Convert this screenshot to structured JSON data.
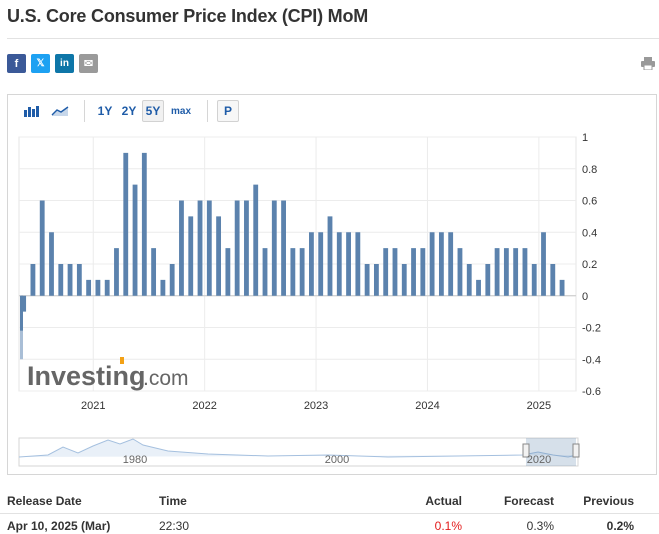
{
  "page": {
    "title": "U.S. Core Consumer Price Index (CPI) MoM"
  },
  "share": {
    "facebook": "f",
    "twitter": "𝕏",
    "linkedin": "in",
    "mail": "✉",
    "icons": [
      "facebook-icon",
      "twitter-icon",
      "linkedin-icon",
      "mail-icon",
      "print-icon"
    ]
  },
  "toolbar": {
    "range_1y": "1Y",
    "range_2y": "2Y",
    "range_5y": "5Y",
    "range_max": "max",
    "p_button": "P",
    "active_range": "5Y"
  },
  "watermark": {
    "text": "Investing",
    "suffix": ".com"
  },
  "colors": {
    "bar": "#5b82ad",
    "bar_highlight": "#a9bed6",
    "accent": "#1f5ca8",
    "actual_negative": "#e31b1b"
  },
  "chart_data": {
    "type": "bar",
    "ylim": [
      -0.6,
      1
    ],
    "yticks": [
      "1",
      "0.8",
      "0.6",
      "0.4",
      "0.2",
      "0",
      "-0.2",
      "-0.4",
      "-0.6"
    ],
    "ytick_values": [
      1,
      0.8,
      0.6,
      0.4,
      0.2,
      0,
      -0.2,
      -0.4,
      -0.6
    ],
    "xticks": [
      "2021",
      "2022",
      "2023",
      "2024",
      "2025"
    ],
    "x_start": "2020-05",
    "x_end": "2025-03",
    "grid": true,
    "series": [
      {
        "name": "",
        "x": [
          "2020-05",
          "2020-06",
          "2020-07",
          "2020-08",
          "2020-09",
          "2020-10",
          "2020-11",
          "2020-12",
          "2021-01",
          "2021-02",
          "2021-03",
          "2021-04",
          "2021-05",
          "2021-06",
          "2021-07",
          "2021-08",
          "2021-09",
          "2021-10",
          "2021-11",
          "2021-12",
          "2022-01",
          "2022-02",
          "2022-03",
          "2022-04",
          "2022-05",
          "2022-06",
          "2022-07",
          "2022-08",
          "2022-09",
          "2022-10",
          "2022-11",
          "2022-12",
          "2023-01",
          "2023-02",
          "2023-03",
          "2023-04",
          "2023-05",
          "2023-06",
          "2023-07",
          "2023-08",
          "2023-09",
          "2023-10",
          "2023-11",
          "2023-12",
          "2024-01",
          "2024-02",
          "2024-03",
          "2024-04",
          "2024-05",
          "2024-06",
          "2024-07",
          "2024-08",
          "2024-09",
          "2024-10",
          "2024-11",
          "2024-12",
          "2025-01",
          "2025-02",
          "2025-03"
        ],
        "values": [
          -0.1,
          0.2,
          0.6,
          0.4,
          0.2,
          0.2,
          0.2,
          0.1,
          0.1,
          0.1,
          0.3,
          0.9,
          0.7,
          0.9,
          0.3,
          0.1,
          0.2,
          0.6,
          0.5,
          0.6,
          0.6,
          0.5,
          0.3,
          0.6,
          0.6,
          0.7,
          0.3,
          0.6,
          0.6,
          0.3,
          0.3,
          0.4,
          0.4,
          0.5,
          0.4,
          0.4,
          0.4,
          0.2,
          0.2,
          0.3,
          0.3,
          0.2,
          0.3,
          0.3,
          0.4,
          0.4,
          0.4,
          0.3,
          0.2,
          0.1,
          0.2,
          0.3,
          0.3,
          0.3,
          0.3,
          0.2,
          0.4,
          0.2,
          0.1
        ]
      }
    ],
    "pre_range_bar": -0.4
  },
  "navigator": {
    "labels": [
      "1980",
      "2000",
      "2020"
    ]
  },
  "table": {
    "headers": {
      "date": "Release Date",
      "time": "Time",
      "actual": "Actual",
      "forecast": "Forecast",
      "previous": "Previous"
    },
    "rows": [
      {
        "date": "Apr 10, 2025 (Mar)",
        "time": "22:30",
        "actual": "0.1%",
        "forecast": "0.3%",
        "previous": "0.2%"
      }
    ]
  }
}
